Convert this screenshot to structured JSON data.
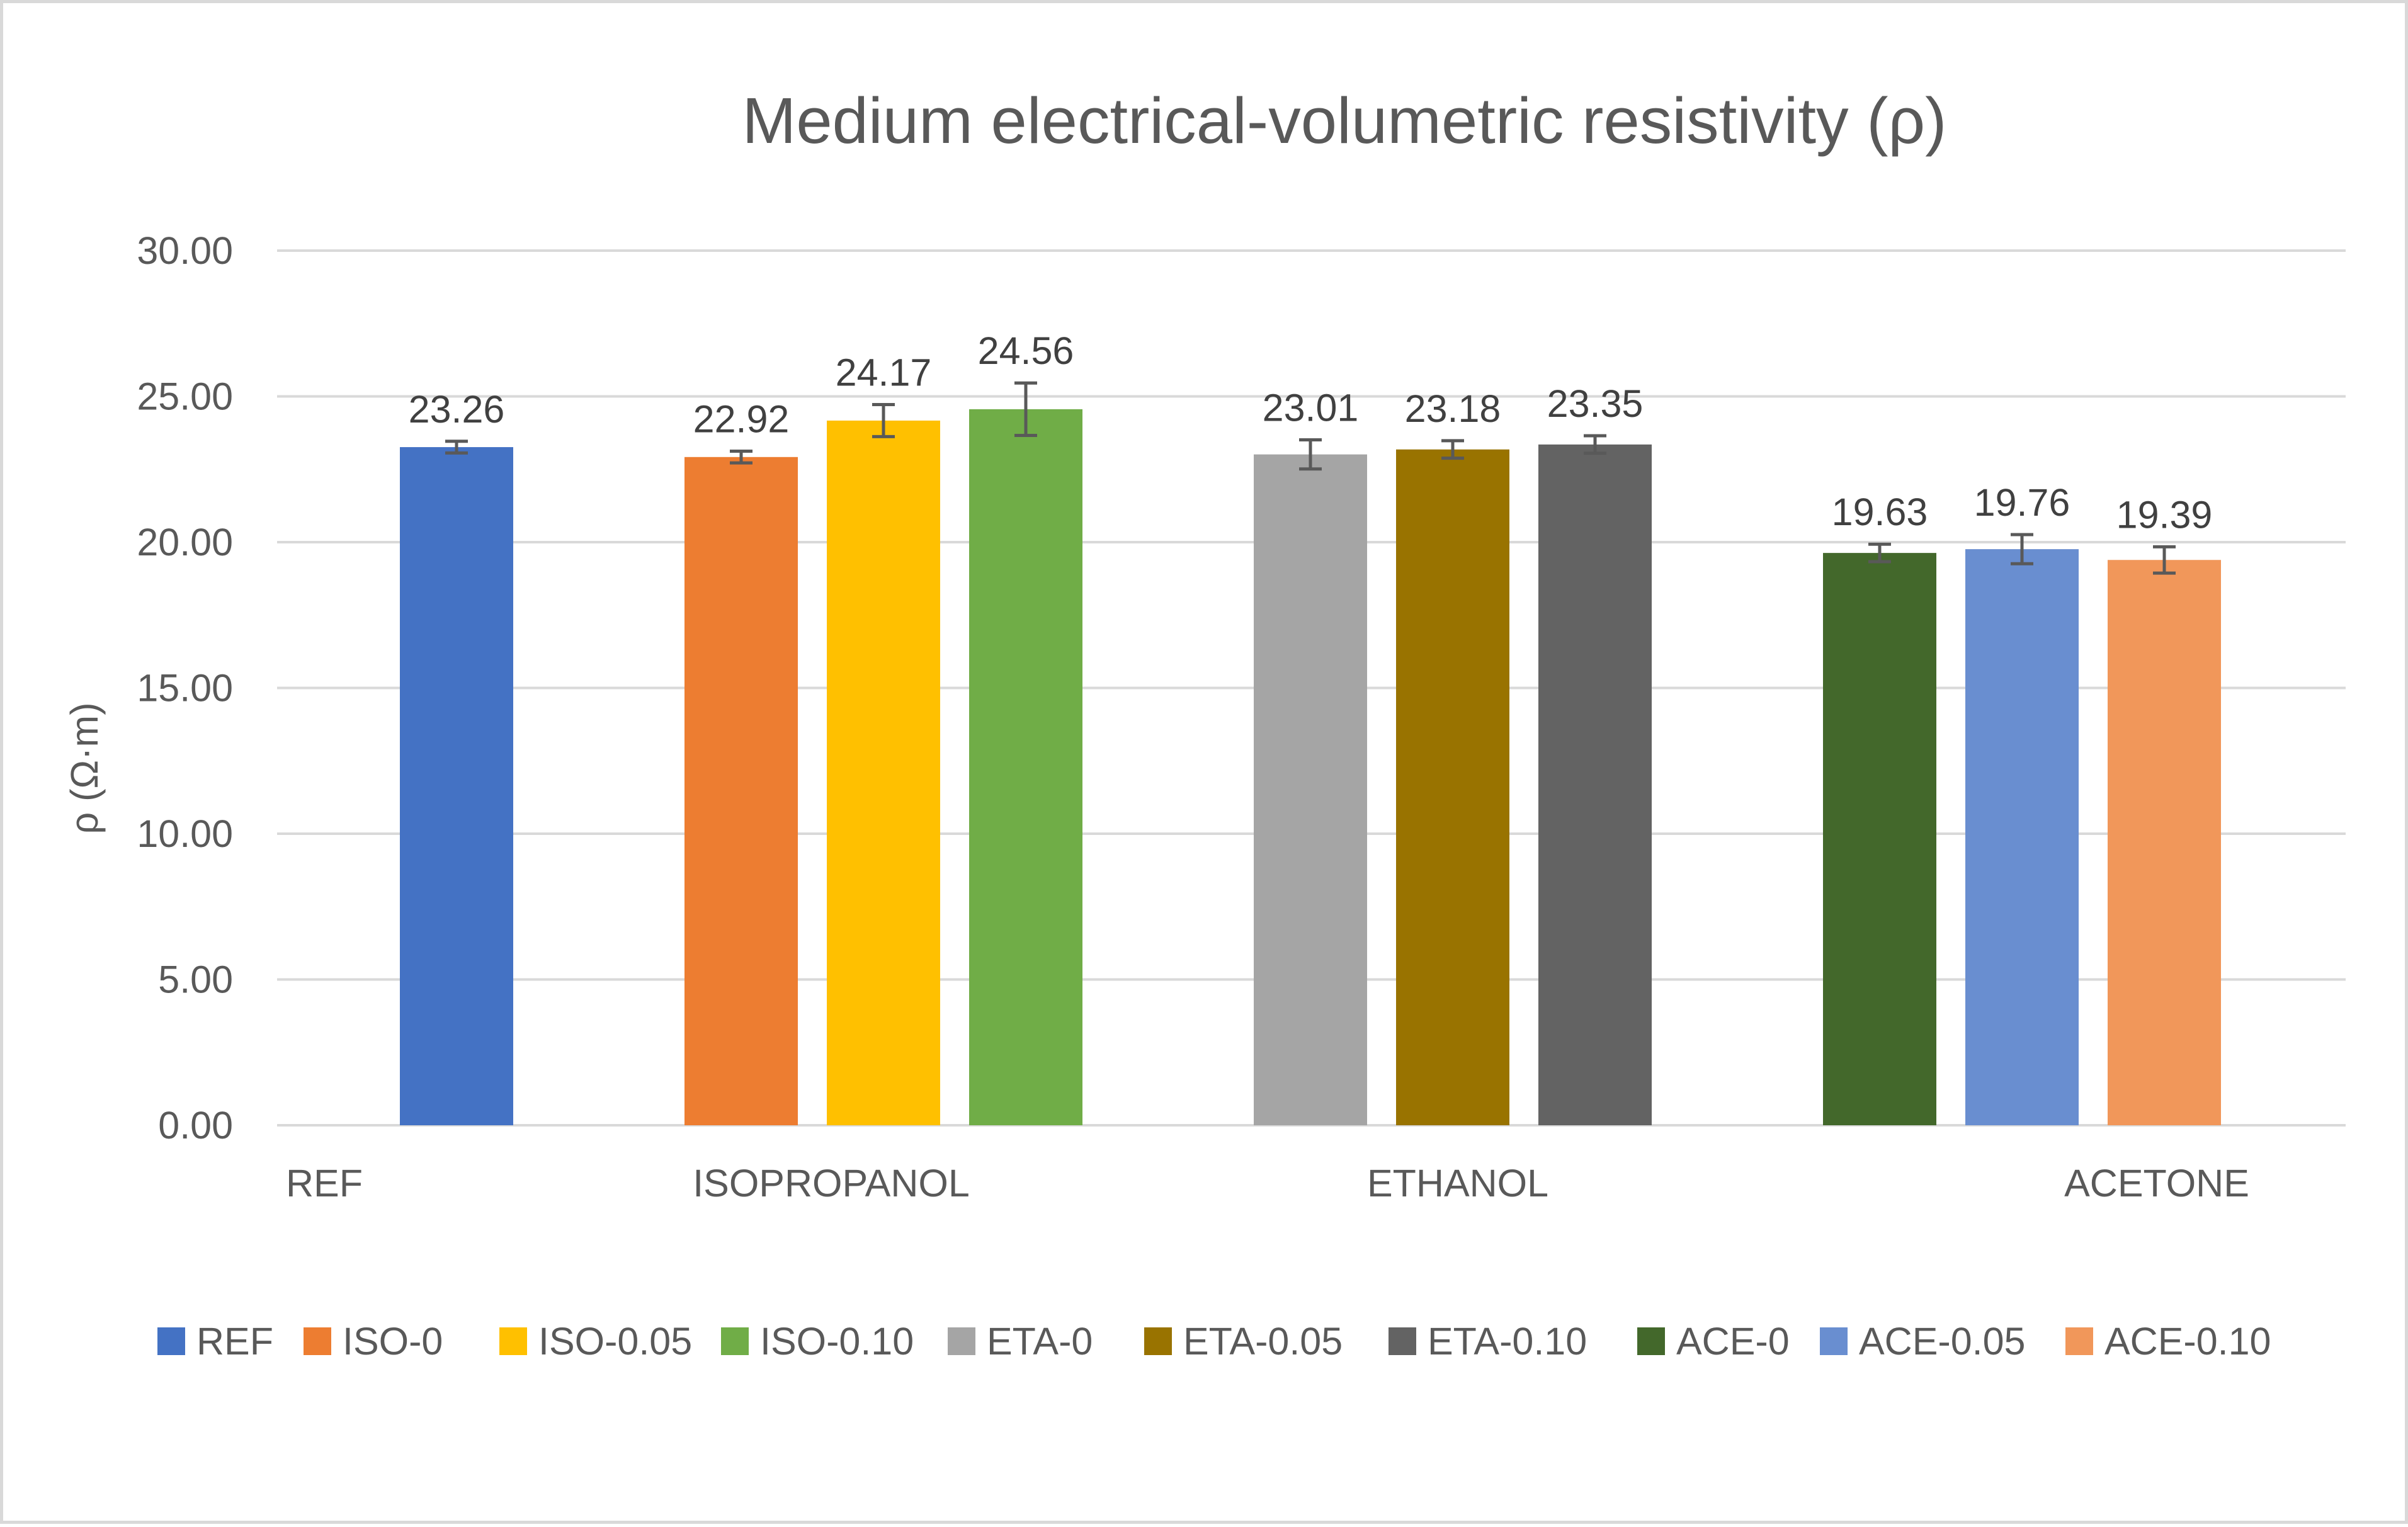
{
  "chart_data": {
    "type": "bar",
    "title": "Medium electrical-volumetric resistivity (ρ)",
    "xlabel": "",
    "ylabel": "ρ (Ω·m)",
    "ylim": [
      0,
      30
    ],
    "yticks": [
      "0.00",
      "5.00",
      "10.00",
      "15.00",
      "20.00",
      "25.00",
      "30.00"
    ],
    "grid": true,
    "legend_position": "bottom",
    "categories": [
      "REF",
      "ISOPROPANOL",
      "ETHANOL",
      "ACETONE"
    ],
    "series": [
      {
        "name": "REF",
        "category": "REF",
        "value": 23.26,
        "label": "23.26",
        "error": 0.2,
        "color": "#4472c4"
      },
      {
        "name": "ISO-0",
        "category": "ISOPROPANOL",
        "value": 22.92,
        "label": "22.92",
        "error": 0.2,
        "color": "#ed7d31"
      },
      {
        "name": "ISO-0.05",
        "category": "ISOPROPANOL",
        "value": 24.17,
        "label": "24.17",
        "error": 0.55,
        "color": "#ffc000"
      },
      {
        "name": "ISO-0.10",
        "category": "ISOPROPANOL",
        "value": 24.56,
        "label": "24.56",
        "error": 0.9,
        "color": "#70ad47"
      },
      {
        "name": "ETA-0",
        "category": "ETHANOL",
        "value": 23.01,
        "label": "23.01",
        "error": 0.5,
        "color": "#a5a5a5"
      },
      {
        "name": "ETA-0.05",
        "category": "ETHANOL",
        "value": 23.18,
        "label": "23.18",
        "error": 0.3,
        "color": "#997300"
      },
      {
        "name": "ETA-0.10",
        "category": "ETHANOL",
        "value": 23.35,
        "label": "23.35",
        "error": 0.3,
        "color": "#636363"
      },
      {
        "name": "ACE-0",
        "category": "ACETONE",
        "value": 19.63,
        "label": "19.63",
        "error": 0.3,
        "color": "#43682b"
      },
      {
        "name": "ACE-0.05",
        "category": "ACETONE",
        "value": 19.76,
        "label": "19.76",
        "error": 0.5,
        "color": "#698ed0"
      },
      {
        "name": "ACE-0.10",
        "category": "ACETONE",
        "value": 19.39,
        "label": "19.39",
        "error": 0.45,
        "color": "#f1975a"
      }
    ],
    "gridline_color": "#d9d9d9",
    "error_bar_color": "#595959"
  }
}
